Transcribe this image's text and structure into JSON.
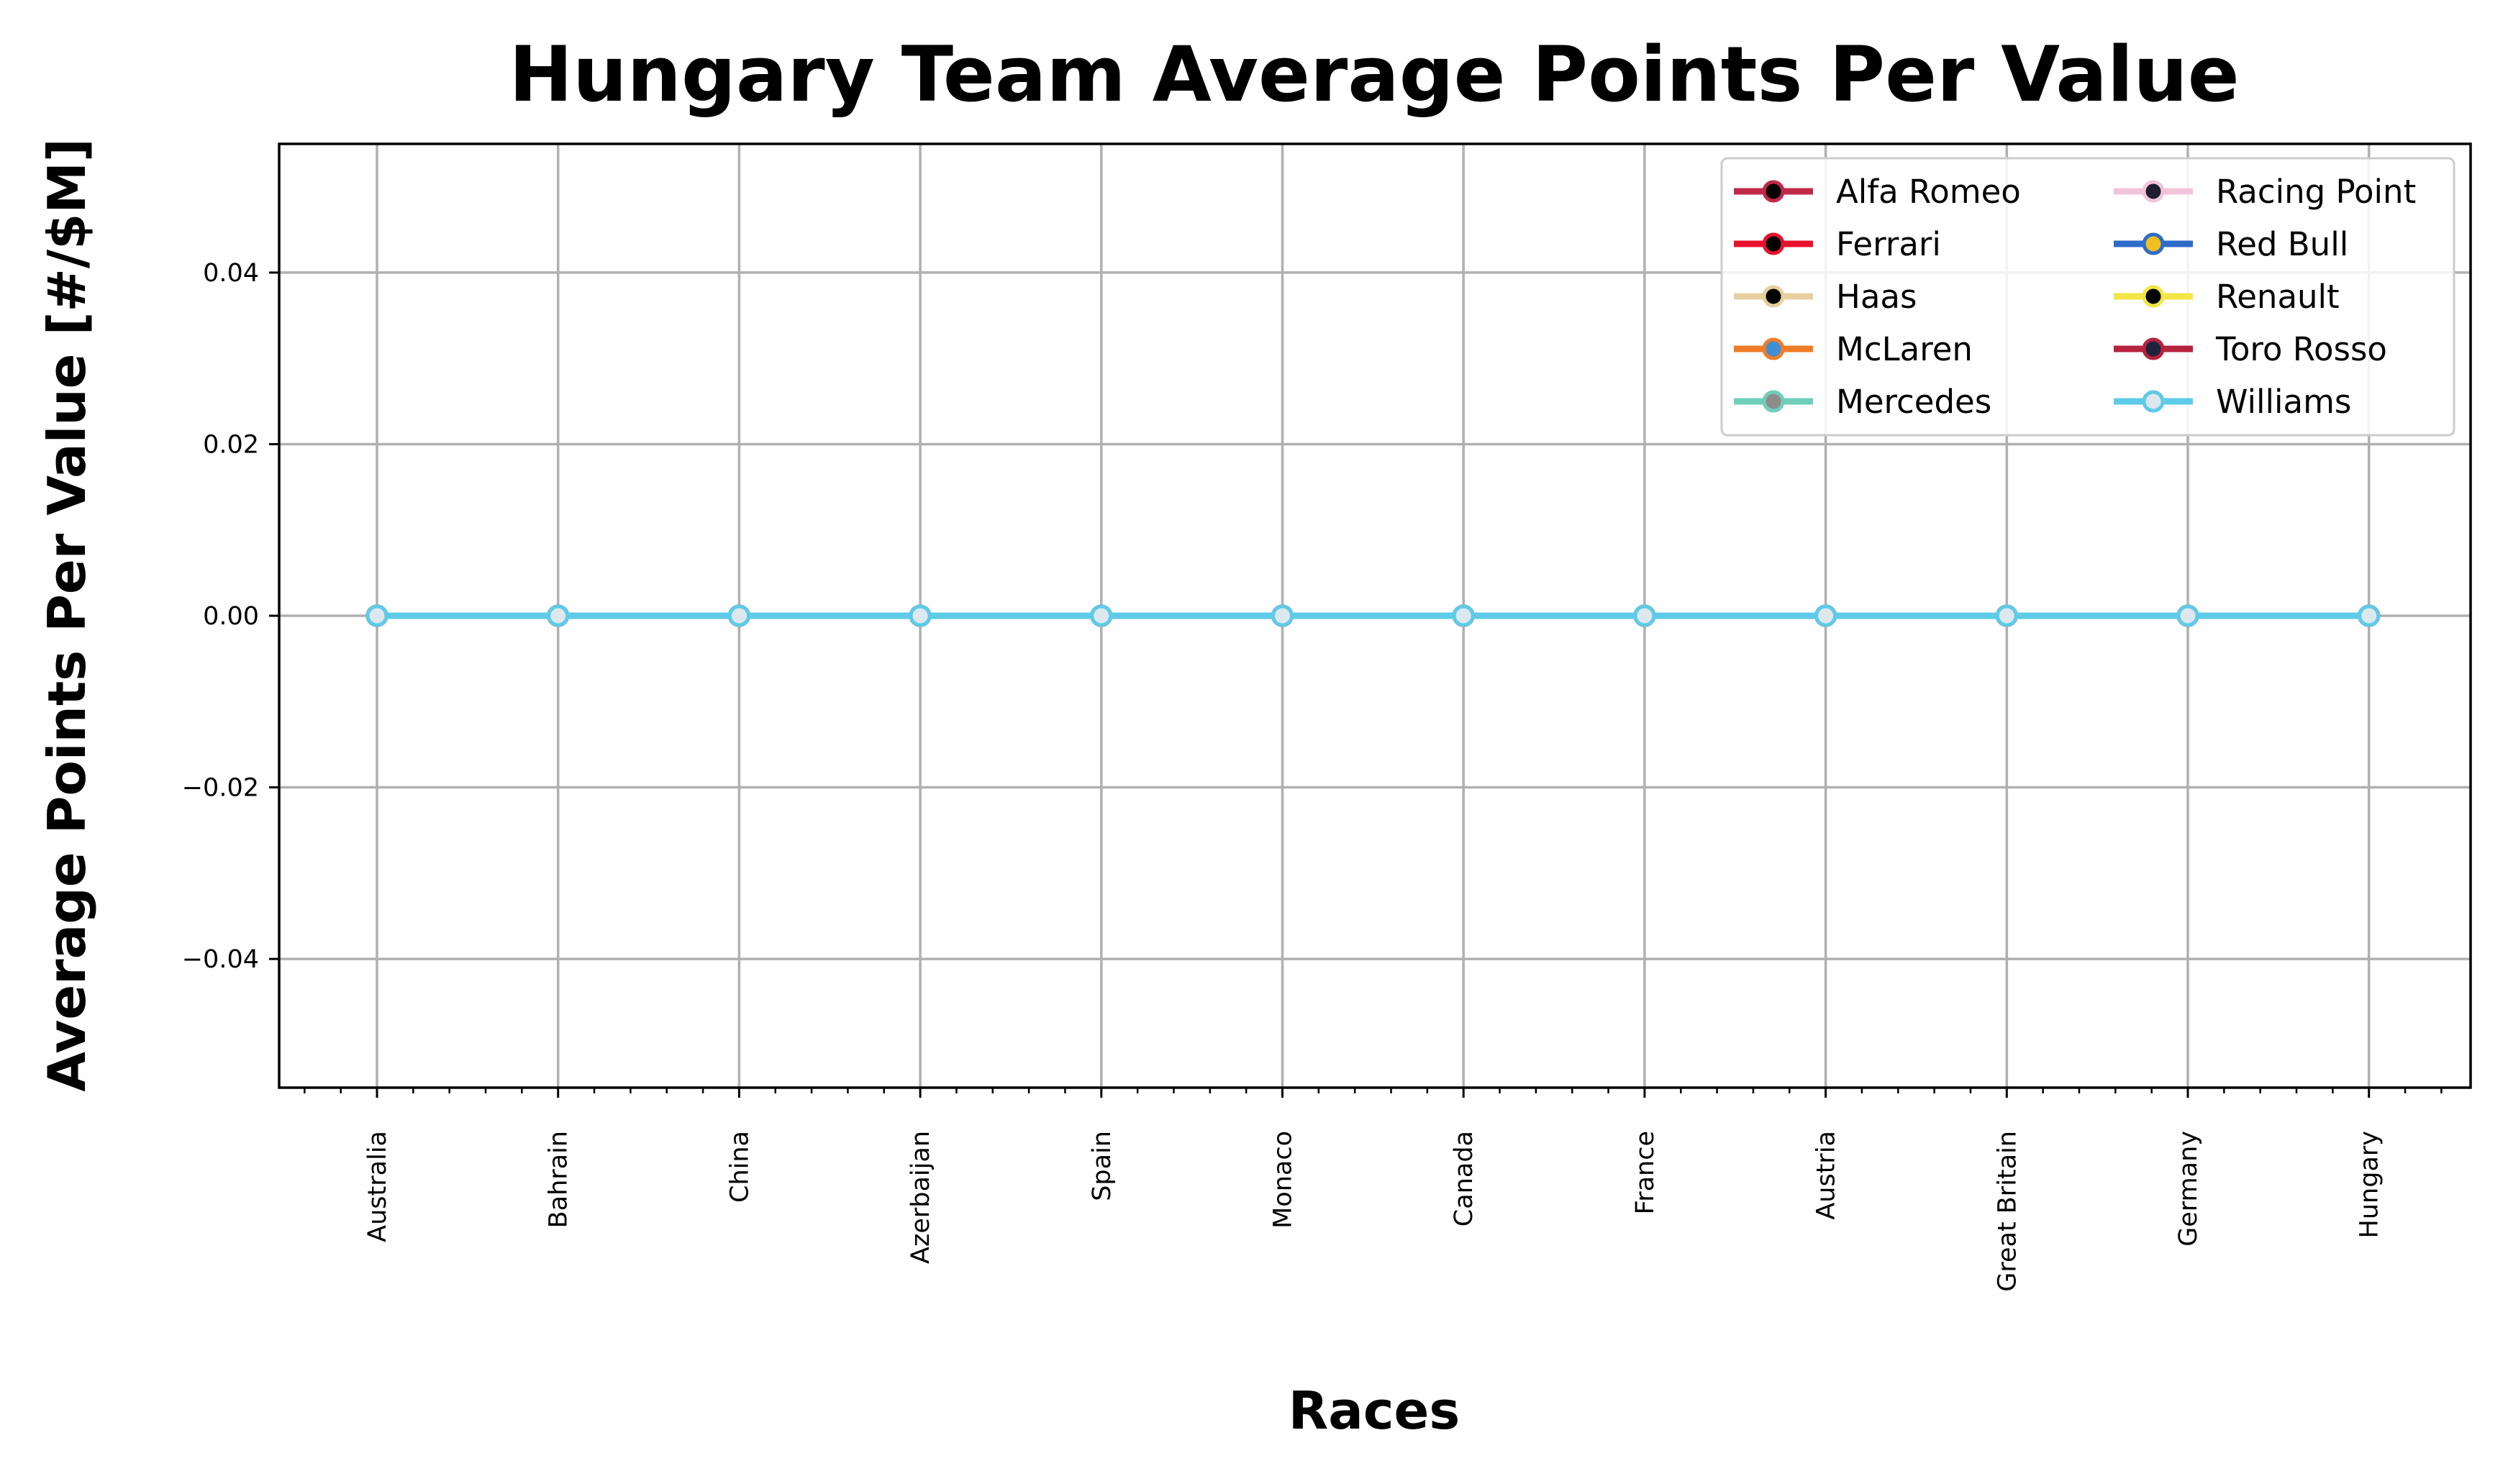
{
  "chart_data": {
    "type": "line",
    "title": "Hungary Team Average Points Per Value",
    "xlabel": "Races",
    "ylabel": "Average Points Per Value [#/$M]",
    "categories": [
      "Australia",
      "Bahrain",
      "China",
      "Azerbaijan",
      "Spain",
      "Monaco",
      "Canada",
      "France",
      "Austria",
      "Great Britain",
      "Germany",
      "Hungary"
    ],
    "yticks": [
      "0.04",
      "0.02",
      "0.00",
      "−0.02",
      "−0.04"
    ],
    "ytick_values": [
      0.04,
      0.02,
      0.0,
      -0.02,
      -0.04
    ],
    "ylim": [
      -0.055,
      0.055
    ],
    "grid": true,
    "legend_position": "top-right",
    "legend_columns": 2,
    "series": [
      {
        "name": "Alfa Romeo",
        "color": "#c0294a",
        "marker_fill": "#000000",
        "values": [
          0,
          0,
          0,
          0,
          0,
          0,
          0,
          0,
          0,
          0,
          0,
          0
        ]
      },
      {
        "name": "Ferrari",
        "color": "#e8112d",
        "marker_fill": "#000000",
        "values": [
          0,
          0,
          0,
          0,
          0,
          0,
          0,
          0,
          0,
          0,
          0,
          0
        ]
      },
      {
        "name": "Haas",
        "color": "#e6d0a0",
        "marker_fill": "#000000",
        "values": [
          0,
          0,
          0,
          0,
          0,
          0,
          0,
          0,
          0,
          0,
          0,
          0
        ]
      },
      {
        "name": "McLaren",
        "color": "#f07d26",
        "marker_fill": "#3d8fd6",
        "values": [
          0,
          0,
          0,
          0,
          0,
          0,
          0,
          0,
          0,
          0,
          0,
          0
        ]
      },
      {
        "name": "Mercedes",
        "color": "#6fcfb9",
        "marker_fill": "#8d8d8d",
        "values": [
          0,
          0,
          0,
          0,
          0,
          0,
          0,
          0,
          0,
          0,
          0,
          0
        ]
      },
      {
        "name": "Racing Point",
        "color": "#f2c4dc",
        "marker_fill": "#1e1e2e",
        "values": [
          0,
          0,
          0,
          0,
          0,
          0,
          0,
          0,
          0,
          0,
          0,
          0
        ]
      },
      {
        "name": "Red Bull",
        "color": "#2f6bc8",
        "marker_fill": "#f0c020",
        "values": [
          0,
          0,
          0,
          0,
          0,
          0,
          0,
          0,
          0,
          0,
          0,
          0
        ]
      },
      {
        "name": "Renault",
        "color": "#f2e545",
        "marker_fill": "#000000",
        "values": [
          0,
          0,
          0,
          0,
          0,
          0,
          0,
          0,
          0,
          0,
          0,
          0
        ]
      },
      {
        "name": "Toro Rosso",
        "color": "#b5233d",
        "marker_fill": "#1e2340",
        "values": [
          0,
          0,
          0,
          0,
          0,
          0,
          0,
          0,
          0,
          0,
          0,
          0
        ]
      },
      {
        "name": "Williams",
        "color": "#5ecbe8",
        "marker_fill": "#dde8ee",
        "values": [
          0,
          0,
          0,
          0,
          0,
          0,
          0,
          0,
          0,
          0,
          0,
          0
        ]
      }
    ]
  }
}
